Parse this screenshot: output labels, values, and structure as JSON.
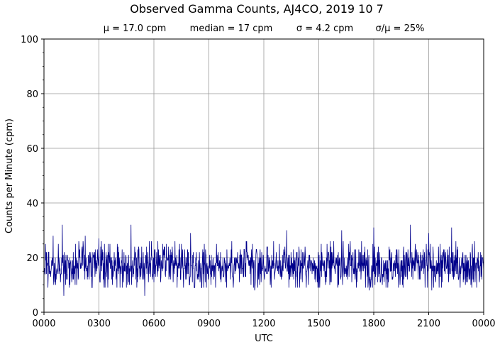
{
  "chart_data": {
    "type": "line",
    "title": "Observed Gamma Counts, AJ4CO, 2019 10 7",
    "stats": {
      "mean": "μ = 17.0 cpm",
      "median": "median = 17 cpm",
      "sigma": "σ = 4.2 cpm",
      "cv": "σ/μ = 25%"
    },
    "xlabel": "UTC",
    "ylabel": "Counts per Minute (cpm)",
    "x_tick_labels": [
      "0000",
      "0300",
      "0600",
      "0900",
      "1200",
      "1500",
      "1800",
      "2100",
      "0000"
    ],
    "y_ticks": [
      0,
      20,
      40,
      60,
      80,
      100
    ],
    "ylim": [
      0,
      100
    ],
    "xlim_hours": [
      0,
      24
    ],
    "grid": true,
    "line_color": "#00008b",
    "sample_interval_minutes": 1,
    "series": [
      {
        "mean_cpm": 17.0,
        "median_cpm": 17,
        "sigma_cpm": 4.2,
        "min_cpm": 6,
        "max_cpm": 32,
        "points": [
          {
            "x": "00:00",
            "y": 14
          },
          {
            "x": "00:15",
            "y": 22
          },
          {
            "x": "00:30",
            "y": 28
          },
          {
            "x": "01:00",
            "y": 32
          },
          {
            "x": "02:15",
            "y": 28
          },
          {
            "x": "03:00",
            "y": 27
          },
          {
            "x": "04:00",
            "y": 25
          },
          {
            "x": "04:45",
            "y": 32
          },
          {
            "x": "06:15",
            "y": 23
          },
          {
            "x": "07:30",
            "y": 25
          },
          {
            "x": "08:00",
            "y": 29
          },
          {
            "x": "10:15",
            "y": 26
          },
          {
            "x": "13:15",
            "y": 30
          },
          {
            "x": "16:15",
            "y": 30
          },
          {
            "x": "18:00",
            "y": 31
          },
          {
            "x": "20:00",
            "y": 32
          },
          {
            "x": "21:00",
            "y": 29
          },
          {
            "x": "22:15",
            "y": 31
          },
          {
            "x": "01:05",
            "y": 6
          },
          {
            "x": "05:30",
            "y": 6
          },
          {
            "x": "11:30",
            "y": 8
          },
          {
            "x": "17:45",
            "y": 8
          },
          {
            "x": "21:10",
            "y": 8
          }
        ]
      }
    ]
  }
}
